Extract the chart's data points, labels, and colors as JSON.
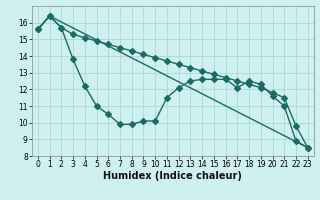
{
  "xlabel": "Humidex (Indice chaleur)",
  "bg_color": "#cff0f0",
  "grid_color": "#aad8d8",
  "line_color": "#1a6b60",
  "xlim": [
    -0.5,
    23.5
  ],
  "ylim": [
    8,
    17
  ],
  "yticks": [
    8,
    9,
    10,
    11,
    12,
    13,
    14,
    15,
    16
  ],
  "xticks": [
    0,
    1,
    2,
    3,
    4,
    5,
    6,
    7,
    8,
    9,
    10,
    11,
    12,
    13,
    14,
    15,
    16,
    17,
    18,
    19,
    20,
    21,
    22,
    23
  ],
  "series1_x": [
    0,
    1,
    2,
    3,
    4,
    5,
    6,
    7,
    8,
    9,
    10,
    11,
    12,
    13,
    14,
    15,
    16,
    17,
    18,
    19,
    20,
    21,
    22,
    23
  ],
  "series1_y": [
    15.6,
    16.4,
    15.7,
    13.8,
    12.2,
    11.0,
    10.5,
    9.9,
    9.9,
    10.1,
    10.1,
    11.5,
    12.1,
    12.5,
    12.6,
    12.6,
    12.6,
    12.1,
    12.5,
    12.3,
    11.6,
    11.0,
    8.9,
    8.5
  ],
  "series2_x": [
    0,
    1,
    2,
    3,
    4,
    5,
    6,
    7,
    8,
    9,
    10,
    11,
    12,
    13,
    14,
    15,
    16,
    17,
    18,
    19,
    20,
    21,
    22,
    23
  ],
  "series2_y": [
    15.6,
    16.4,
    15.7,
    15.3,
    15.1,
    14.9,
    14.7,
    14.5,
    14.3,
    14.1,
    13.9,
    13.7,
    13.5,
    13.3,
    13.1,
    12.9,
    12.7,
    12.5,
    12.3,
    12.1,
    11.8,
    11.5,
    9.8,
    8.5
  ],
  "series3_x": [
    0,
    1,
    23
  ],
  "series3_y": [
    15.6,
    16.4,
    8.5
  ]
}
